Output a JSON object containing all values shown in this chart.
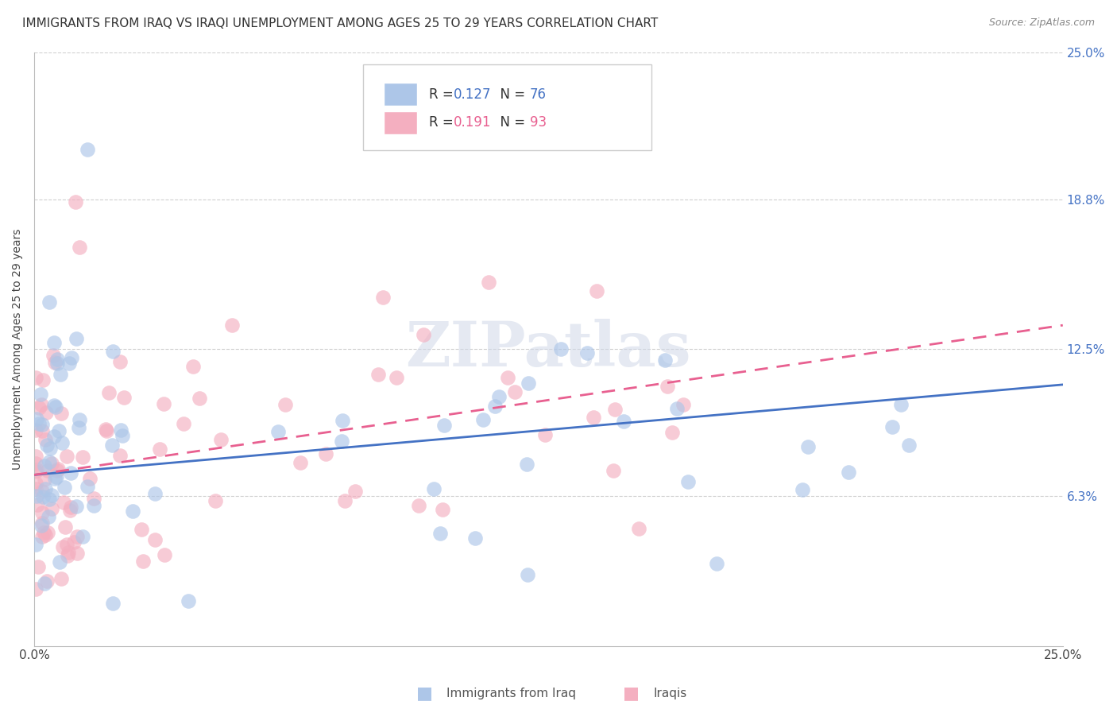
{
  "title": "IMMIGRANTS FROM IRAQ VS IRAQI UNEMPLOYMENT AMONG AGES 25 TO 29 YEARS CORRELATION CHART",
  "source": "Source: ZipAtlas.com",
  "ylabel": "Unemployment Among Ages 25 to 29 years",
  "xlim": [
    0.0,
    0.25
  ],
  "ylim": [
    0.0,
    0.25
  ],
  "ytick_values": [
    0.063,
    0.125,
    0.188,
    0.25
  ],
  "ytick_labels": [
    "6.3%",
    "12.5%",
    "18.8%",
    "25.0%"
  ],
  "blue_color": "#adc6e8",
  "pink_color": "#f4afc0",
  "blue_line_color": "#4472c4",
  "pink_line_color": "#e86090",
  "blue_R": "0.127",
  "blue_N": "76",
  "pink_R": "0.191",
  "pink_N": "93",
  "blue_line_x": [
    0.0,
    0.25
  ],
  "blue_line_y": [
    0.072,
    0.11
  ],
  "pink_line_x": [
    0.0,
    0.25
  ],
  "pink_line_y": [
    0.072,
    0.135
  ],
  "watermark": "ZIPatlas",
  "bg_color": "#ffffff",
  "grid_color": "#d0d0d0",
  "title_fontsize": 11,
  "axis_label_fontsize": 10,
  "tick_fontsize": 11,
  "legend_fontsize": 12,
  "scatter_size": 180,
  "scatter_alpha": 0.65
}
